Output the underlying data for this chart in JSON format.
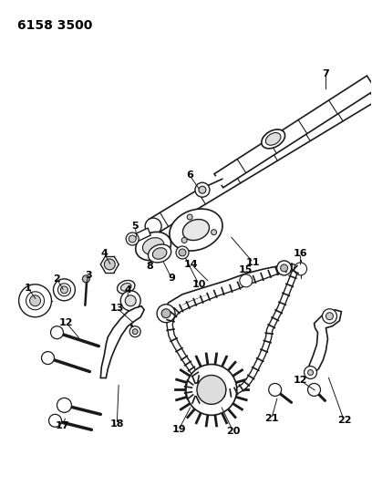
{
  "title_code": "6158 3500",
  "bg_color": "#ffffff",
  "line_color": "#1a1a1a",
  "fig_width": 4.08,
  "fig_height": 5.33,
  "dpi": 100
}
